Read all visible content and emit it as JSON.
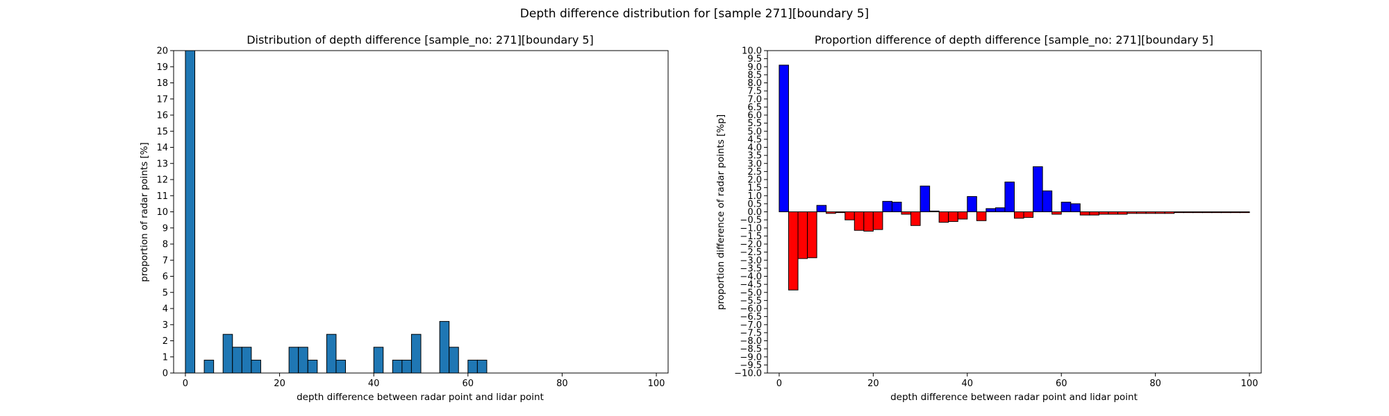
{
  "figure": {
    "suptitle": "Depth difference distribution for [sample 271][boundary 5]"
  },
  "colors": {
    "hist_fill": "#1f77b4",
    "positive": "#0000ff",
    "negative": "#ff0000",
    "edge": "#000000"
  },
  "chart_data": [
    {
      "type": "bar",
      "title": "Distribution of depth difference [sample_no: 271][boundary 5]",
      "xlabel": "depth difference between radar point and lidar point",
      "ylabel": "proportion of radar points [%]",
      "xlim": [
        -2.5,
        102.5
      ],
      "ylim": [
        0,
        20
      ],
      "bin_width": 2,
      "xticks": [
        0,
        20,
        40,
        60,
        80,
        100
      ],
      "yticks": [
        0,
        1,
        2,
        3,
        4,
        5,
        6,
        7,
        8,
        9,
        10,
        11,
        12,
        13,
        14,
        15,
        16,
        17,
        18,
        19,
        20
      ],
      "x": [
        0,
        2,
        4,
        6,
        8,
        10,
        12,
        14,
        16,
        18,
        20,
        22,
        24,
        26,
        28,
        30,
        32,
        34,
        36,
        38,
        40,
        42,
        44,
        46,
        48,
        50,
        52,
        54,
        56,
        58,
        60,
        62,
        64,
        66,
        68,
        70,
        72,
        74,
        76,
        78,
        80,
        82,
        84,
        86,
        88,
        90,
        92,
        94,
        96,
        98
      ],
      "values": [
        20,
        0,
        0.8,
        0,
        2.4,
        1.6,
        1.6,
        0.8,
        0,
        0,
        0,
        1.6,
        1.6,
        0.8,
        0,
        2.4,
        0.8,
        0,
        0,
        0,
        1.6,
        0,
        0.8,
        0.8,
        2.4,
        0,
        0,
        3.2,
        1.6,
        0,
        0.8,
        0.8,
        0,
        0,
        0,
        0,
        0,
        0,
        0,
        0,
        0,
        0,
        0,
        0,
        0,
        0,
        0,
        0,
        0,
        0
      ],
      "grid": false,
      "legend": false
    },
    {
      "type": "bar",
      "title": "Proportion difference of depth difference [sample_no: 271][boundary 5]",
      "xlabel": "depth difference between radar point and lidar point",
      "ylabel": "proportion difference of radar points [%p]",
      "xlim": [
        -2.5,
        102.5
      ],
      "ylim": [
        -10,
        10
      ],
      "bin_width": 2,
      "xticks": [
        0,
        20,
        40,
        60,
        80,
        100
      ],
      "yticks": [
        "10.0",
        "9.5",
        "9.0",
        "8.5",
        "8.0",
        "7.5",
        "7.0",
        "6.5",
        "6.0",
        "5.5",
        "5.0",
        "4.5",
        "4.0",
        "3.5",
        "3.0",
        "2.5",
        "2.0",
        "1.5",
        "1.0",
        "0.5",
        "0.0",
        "−0.5",
        "−1.0",
        "−1.5",
        "−2.0",
        "−2.5",
        "−3.0",
        "−3.5",
        "−4.0",
        "−4.5",
        "−5.0",
        "−5.5",
        "−6.0",
        "−6.5",
        "−7.0",
        "−7.5",
        "−8.0",
        "−8.5",
        "−9.0",
        "−9.5",
        "−10.0"
      ],
      "x": [
        0,
        2,
        4,
        6,
        8,
        10,
        12,
        14,
        16,
        18,
        20,
        22,
        24,
        26,
        28,
        30,
        32,
        34,
        36,
        38,
        40,
        42,
        44,
        46,
        48,
        50,
        52,
        54,
        56,
        58,
        60,
        62,
        64,
        66,
        68,
        70,
        72,
        74,
        76,
        78,
        80,
        82,
        84,
        86,
        88,
        90,
        92,
        94,
        96,
        98
      ],
      "values": [
        9.1,
        -4.85,
        -2.9,
        -2.85,
        0.4,
        -0.1,
        -0.05,
        -0.5,
        -1.15,
        -1.2,
        -1.1,
        0.65,
        0.6,
        -0.15,
        -0.85,
        1.6,
        0.05,
        -0.65,
        -0.6,
        -0.45,
        0.95,
        -0.55,
        0.2,
        0.25,
        1.85,
        -0.4,
        -0.35,
        2.8,
        1.3,
        -0.15,
        0.6,
        0.5,
        -0.2,
        -0.2,
        -0.15,
        -0.15,
        -0.15,
        -0.1,
        -0.1,
        -0.1,
        -0.1,
        -0.1,
        -0.05,
        -0.05,
        -0.05,
        -0.05,
        -0.05,
        -0.05,
        -0.05,
        -0.05
      ],
      "grid": false,
      "legend": false
    }
  ]
}
